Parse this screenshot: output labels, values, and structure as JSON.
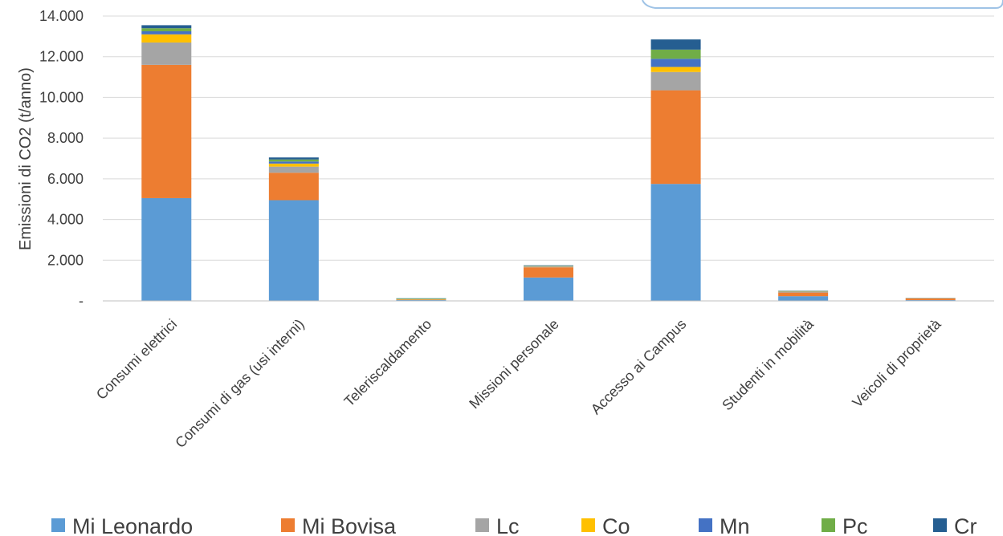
{
  "chart_data": {
    "type": "bar",
    "stacked": true,
    "title": "",
    "xlabel": "",
    "ylabel": "Emissioni di CO2 (t/anno)",
    "ylim": [
      0,
      14000
    ],
    "yticks": [
      0,
      2000,
      4000,
      6000,
      8000,
      10000,
      12000,
      14000
    ],
    "ytick_labels": [
      "-",
      "2.000",
      "4.000",
      "6.000",
      "8.000",
      "10.000",
      "12.000",
      "14.000"
    ],
    "grid": true,
    "legend_position": "bottom",
    "categories": [
      "Consumi elettrici",
      "Consumi di gas (usi interni)",
      "Teleriscaldamento",
      "Missioni personale",
      "Accesso ai Campus",
      "Studenti in mobilità",
      "Veicoli di proprietà"
    ],
    "series": [
      {
        "name": "Mi Leonardo",
        "color": "#5b9bd5",
        "values": [
          5050,
          4950,
          40,
          1150,
          5750,
          230,
          40
        ]
      },
      {
        "name": "Mi Bovisa",
        "color": "#ed7d31",
        "values": [
          6550,
          1350,
          20,
          500,
          4600,
          180,
          80
        ]
      },
      {
        "name": "Lc",
        "color": "#a5a5a5",
        "values": [
          1100,
          300,
          10,
          40,
          900,
          30,
          10
        ]
      },
      {
        "name": "Co",
        "color": "#ffc000",
        "values": [
          400,
          150,
          10,
          15,
          250,
          15,
          5
        ]
      },
      {
        "name": "Mn",
        "color": "#4472c4",
        "values": [
          150,
          100,
          10,
          15,
          400,
          15,
          5
        ]
      },
      {
        "name": "Pc",
        "color": "#70ad47",
        "values": [
          150,
          100,
          30,
          15,
          450,
          15,
          5
        ]
      },
      {
        "name": "Cr",
        "color": "#255e91",
        "values": [
          150,
          100,
          10,
          15,
          500,
          15,
          5
        ]
      }
    ]
  }
}
